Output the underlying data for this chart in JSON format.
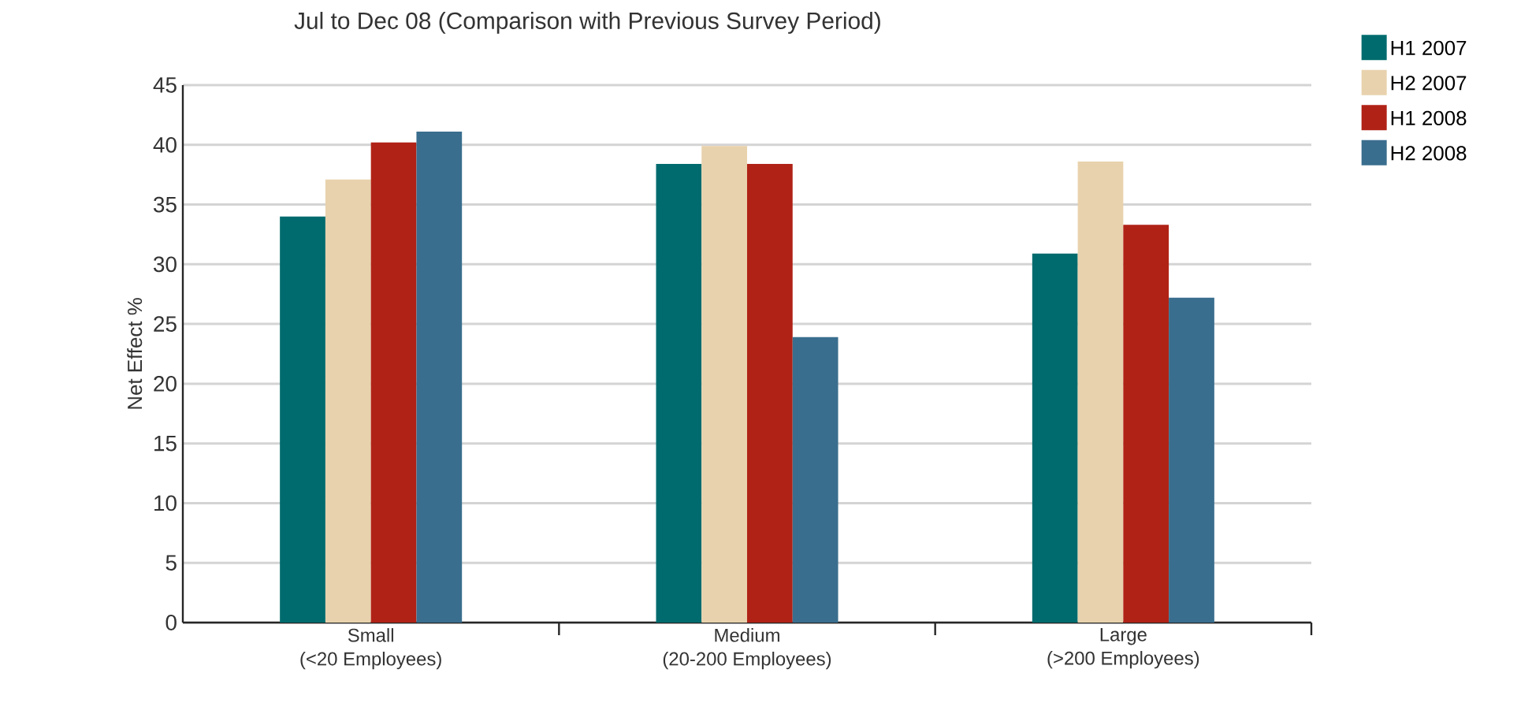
{
  "chart_data": {
    "type": "bar",
    "title": "Jul to Dec 08 (Comparison with Previous Survey Period)",
    "ylabel": "Net Effect %",
    "categories": [
      "Small\n(<20 Employees)",
      "Medium\n(20-200 Employees)",
      "Large\n(>200 Employees)"
    ],
    "series": [
      {
        "name": "H1 2007",
        "color": "#006b6e",
        "values": [
          34,
          38.4,
          30.9
        ]
      },
      {
        "name": "H2 2007",
        "color": "#e8d2ad",
        "values": [
          37.1,
          39.9,
          38.6
        ]
      },
      {
        "name": "H1 2008",
        "color": "#b02216",
        "values": [
          40.2,
          38.4,
          33.3
        ]
      },
      {
        "name": "H2 2008",
        "color": "#3a6e8e",
        "values": [
          41.1,
          23.9,
          27.2
        ]
      }
    ],
    "ylim": [
      0,
      45
    ],
    "yticks": [
      0,
      5,
      10,
      15,
      20,
      25,
      30,
      35,
      40,
      45
    ],
    "grid": "y",
    "legend": "top right"
  }
}
